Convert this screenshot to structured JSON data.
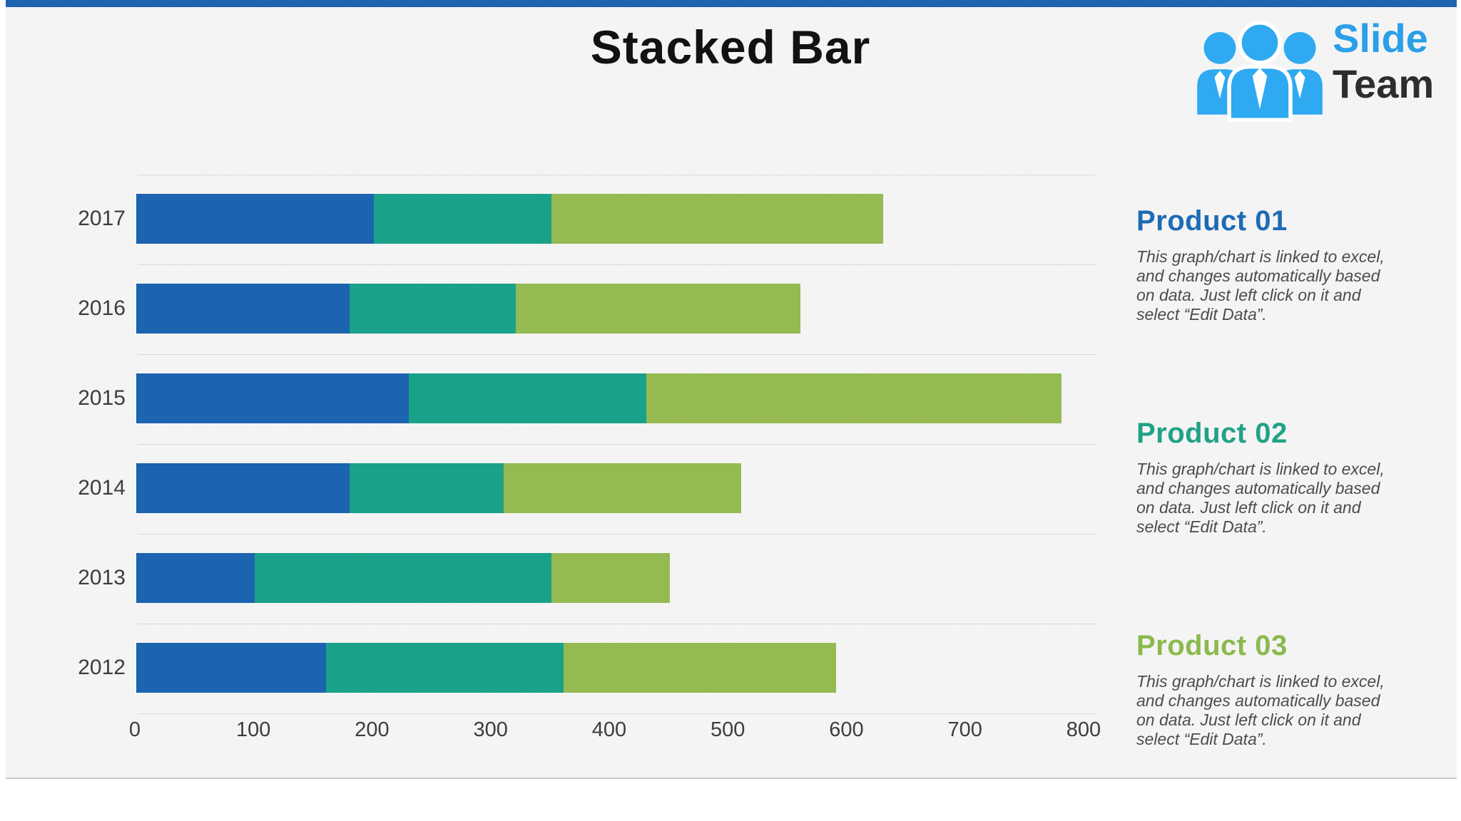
{
  "slide": {
    "title": "Stacked Bar",
    "accent_bar_color": "#1d63b0",
    "background_color": "#f6f6f6"
  },
  "logo": {
    "name": "SlideTeam",
    "word1": "Slide",
    "word2": "Team",
    "icon": "team-people-icon",
    "icon_color": "#2fa9f1",
    "word1_color": "#2b9fe8",
    "word2_color": "#2d2d2d"
  },
  "chart_data": {
    "type": "bar",
    "orientation": "horizontal",
    "stacked": true,
    "title": "Stacked Bar",
    "categories": [
      "2017",
      "2016",
      "2015",
      "2014",
      "2013",
      "2012"
    ],
    "series": [
      {
        "name": "Product 01",
        "color": "#1c63b0",
        "values": [
          200,
          180,
          230,
          180,
          100,
          160
        ]
      },
      {
        "name": "Product 02",
        "color": "#19a189",
        "values": [
          150,
          140,
          200,
          130,
          250,
          200
        ]
      },
      {
        "name": "Product 03",
        "color": "#95ba52",
        "values": [
          280,
          240,
          350,
          200,
          100,
          230
        ]
      }
    ],
    "totals": [
      630,
      560,
      780,
      510,
      450,
      590
    ],
    "xlim": [
      0,
      800
    ],
    "xticks": [
      "0",
      "100",
      "200",
      "300",
      "400",
      "500",
      "600",
      "700",
      "800"
    ],
    "grid": "horizontal category separator lines",
    "legend_position": "none",
    "gridline_color": "#d7d7d7"
  },
  "panel": {
    "products": [
      {
        "title": "Product 01",
        "color": "#1e6bb5",
        "body": "This graph/chart is linked to excel, and changes automatically based on data. Just left click on it and select “Edit Data”."
      },
      {
        "title": "Product 02",
        "color": "#21a287",
        "body": "This graph/chart is linked to excel, and changes automatically based on data. Just left click on it and select “Edit Data”."
      },
      {
        "title": "Product 03",
        "color": "#8cb94e",
        "body": "This graph/chart is linked to excel, and changes automatically based on data. Just left click on it and select “Edit Data”."
      }
    ]
  }
}
